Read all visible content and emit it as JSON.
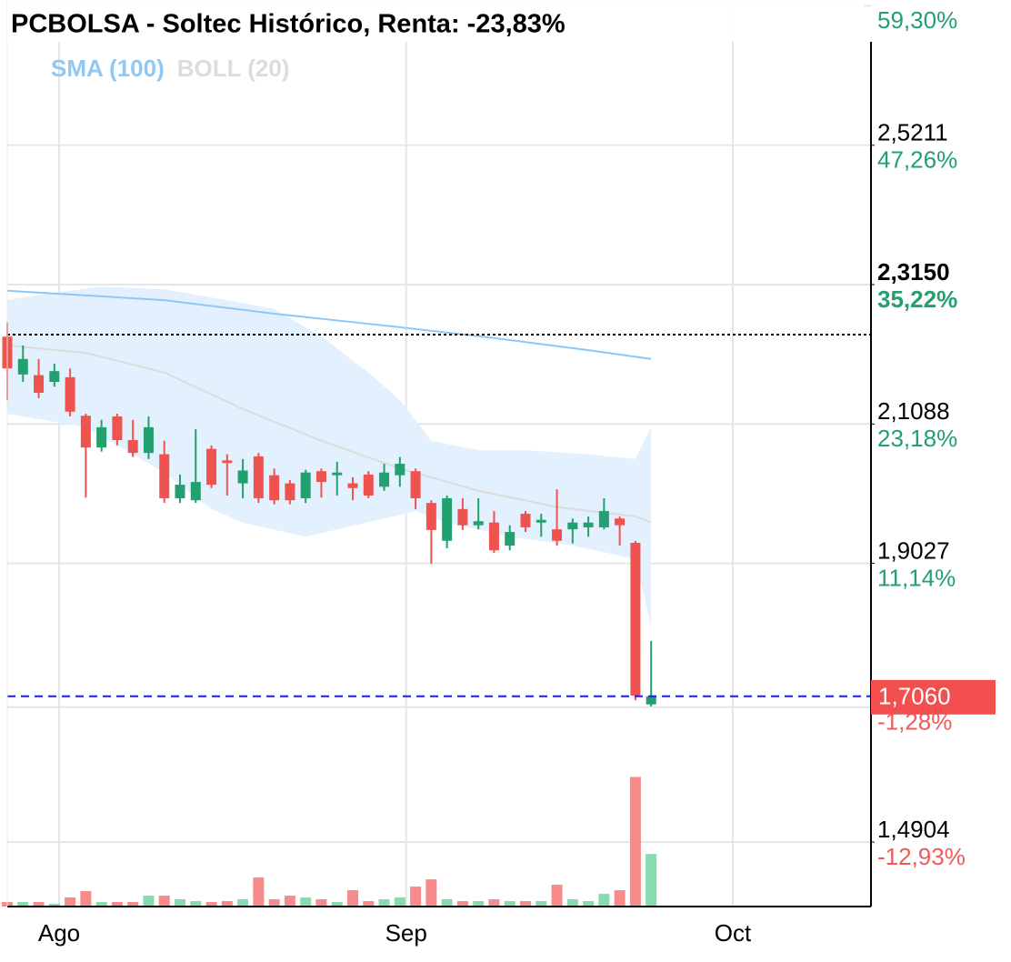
{
  "chart_data": {
    "type": "candlestick",
    "title": "PCBOLSA - Soltec Histórico, Renta: -23,83%",
    "x": [
      0,
      1,
      2,
      3,
      4,
      5,
      6,
      7,
      8,
      9,
      10,
      11,
      12,
      13,
      14,
      15,
      16,
      17,
      18,
      19,
      20,
      21,
      22,
      23,
      24,
      25,
      26,
      27,
      28,
      29,
      30,
      31,
      32,
      33,
      34,
      35,
      36,
      37,
      38,
      39,
      40,
      41
    ],
    "open": [
      2.238,
      2.182,
      2.181,
      2.171,
      2.178,
      2.121,
      2.074,
      2.12,
      2.085,
      2.066,
      2.064,
      1.999,
      1.996,
      2.072,
      2.055,
      2.021,
      2.061,
      2.033,
      2.021,
      1.999,
      2.039,
      2.033,
      2.021,
      2.034,
      2.016,
      2.033,
      2.039,
      1.992,
      1.936,
      1.983,
      1.959,
      1.963,
      1.929,
      1.976,
      1.963,
      1.953,
      1.953,
      1.956,
      1.956,
      1.969,
      1.933,
      1.694
    ],
    "high": [
      2.259,
      2.225,
      2.205,
      2.198,
      2.191,
      2.124,
      2.115,
      2.124,
      2.115,
      2.12,
      2.084,
      2.034,
      2.101,
      2.077,
      2.064,
      2.057,
      2.066,
      2.043,
      2.026,
      2.041,
      2.043,
      2.053,
      2.03,
      2.039,
      2.05,
      2.06,
      2.043,
      1.996,
      2.003,
      1.999,
      1.999,
      1.98,
      1.959,
      1.98,
      1.976,
      2.012,
      1.969,
      1.972,
      1.999,
      1.972,
      1.936,
      1.788
    ],
    "low": [
      2.144,
      2.171,
      2.147,
      2.164,
      2.12,
      2.0,
      2.068,
      2.077,
      2.06,
      2.057,
      1.992,
      1.992,
      1.992,
      2.014,
      2.003,
      1.999,
      1.992,
      1.99,
      1.99,
      1.992,
      2.0,
      2.003,
      1.996,
      1.999,
      2.01,
      2.016,
      1.983,
      1.902,
      1.925,
      1.952,
      1.953,
      1.918,
      1.922,
      1.949,
      1.942,
      1.929,
      1.932,
      1.942,
      1.953,
      1.929,
      1.7,
      1.691
    ],
    "close": [
      2.191,
      2.205,
      2.155,
      2.187,
      2.127,
      2.074,
      2.104,
      2.085,
      2.066,
      2.104,
      1.999,
      2.019,
      2.023,
      2.019,
      2.051,
      2.04,
      1.999,
      1.996,
      1.996,
      2.037,
      2.023,
      2.037,
      2.014,
      2.003,
      2.037,
      2.05,
      1.999,
      1.952,
      1.999,
      1.959,
      1.965,
      1.922,
      1.949,
      1.956,
      1.967,
      1.936,
      1.963,
      1.963,
      1.98,
      1.959,
      1.707,
      1.706
    ],
    "up_color": "#22a06f",
    "down_color": "#ef5350",
    "volume": {
      "values": [
        5,
        5,
        5,
        3,
        10,
        17,
        5,
        5,
        5,
        12,
        12,
        8,
        6,
        5,
        6,
        8,
        32,
        8,
        12,
        10,
        8,
        5,
        18,
        6,
        8,
        10,
        22,
        30,
        8,
        6,
        6,
        8,
        6,
        6,
        6,
        24,
        8,
        6,
        14,
        18,
        143,
        58
      ],
      "ylim": [
        0,
        1000
      ],
      "up_color": "#86dbb0",
      "down_color": "#f78b8b"
    },
    "sma": {
      "name": "SMA (100)",
      "color": "#90c8f5",
      "x": [
        0,
        10,
        17,
        25,
        31,
        37,
        41
      ],
      "values": [
        2.306,
        2.292,
        2.272,
        2.252,
        2.236,
        2.218,
        2.205
      ]
    },
    "boll": {
      "name": "BOLL (20)",
      "color": "#dcdcdc",
      "fill": "#e2f1fd",
      "upper": {
        "x": [
          0,
          3,
          6,
          10,
          14,
          17,
          20,
          23,
          25,
          27,
          30,
          33,
          37,
          40,
          41
        ],
        "values": [
          2.292,
          2.303,
          2.312,
          2.308,
          2.292,
          2.279,
          2.238,
          2.185,
          2.144,
          2.084,
          2.07,
          2.07,
          2.064,
          2.057,
          2.104
        ]
      },
      "middle": {
        "x": [
          0,
          5,
          10,
          15,
          20,
          25,
          30,
          35,
          40,
          41
        ],
        "values": [
          2.225,
          2.214,
          2.185,
          2.131,
          2.084,
          2.043,
          2.01,
          1.986,
          1.972,
          1.963
        ]
      },
      "lower": {
        "x": [
          0,
          5,
          10,
          13,
          15,
          19,
          24,
          26,
          28,
          32,
          36,
          40,
          41
        ],
        "values": [
          2.124,
          2.104,
          2.037,
          1.983,
          1.963,
          1.942,
          1.969,
          1.98,
          1.963,
          1.942,
          1.929,
          1.909,
          1.808
        ]
      }
    },
    "xlim": [
      0,
      55
    ],
    "xticks": [
      {
        "value": 3.3,
        "label": "Ago"
      },
      {
        "value": 25.4,
        "label": "Sep"
      },
      {
        "value": 46.2,
        "label": "Oct"
      }
    ],
    "ylim": [
      1.395,
      2.736
    ],
    "yticks": [
      {
        "value": 2.5211,
        "label": "2,5211"
      },
      {
        "value": 2.315,
        "label": "2,3150"
      },
      {
        "value": 2.1088,
        "label": "2,1088"
      },
      {
        "value": 1.9027,
        "label": "1,9027"
      },
      {
        "value": 1.4904,
        "label": "1,4904"
      }
    ],
    "y2lim": [
      -18.5,
      59.8
    ],
    "y2ticks": [
      {
        "value": 59.3,
        "label": "59,30%"
      },
      {
        "value": 47.26,
        "label": "47,26%"
      },
      {
        "value": 35.22,
        "label": "35,22%"
      },
      {
        "value": 23.18,
        "label": "23,18%"
      },
      {
        "value": 11.14,
        "label": "11,14%"
      },
      {
        "value": -1.28,
        "label": "-1,28%"
      },
      {
        "value": -12.93,
        "label": "-12,93%"
      }
    ],
    "grid": true,
    "reference_line": 2.241,
    "last_price": {
      "value": 1.706,
      "label": "1,7060",
      "color": "#f44f4f"
    }
  }
}
